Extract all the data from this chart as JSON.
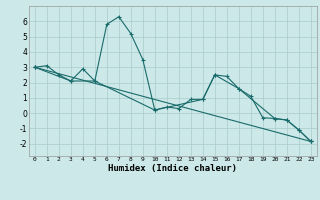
{
  "xlabel": "Humidex (Indice chaleur)",
  "bg_color": "#cce8e8",
  "grid_color": "#aacccc",
  "line_color": "#1a6b6b",
  "xlim": [
    -0.5,
    23.5
  ],
  "ylim": [
    -2.8,
    7.0
  ],
  "yticks": [
    -2,
    -1,
    0,
    1,
    2,
    3,
    4,
    5,
    6
  ],
  "xticks": [
    0,
    1,
    2,
    3,
    4,
    5,
    6,
    7,
    8,
    9,
    10,
    11,
    12,
    13,
    14,
    15,
    16,
    17,
    18,
    19,
    20,
    21,
    22,
    23
  ],
  "series1_x": [
    0,
    1,
    2,
    3,
    4,
    5,
    6,
    7,
    8,
    9,
    10,
    11,
    12,
    13,
    14,
    15,
    16,
    17,
    18,
    19,
    20,
    21,
    22,
    23
  ],
  "series1_y": [
    3.0,
    3.1,
    2.5,
    2.1,
    2.9,
    2.1,
    5.8,
    6.3,
    5.2,
    3.5,
    0.2,
    0.4,
    0.3,
    0.9,
    0.9,
    2.5,
    2.4,
    1.6,
    1.1,
    -0.3,
    -0.35,
    -0.45,
    -1.1,
    -1.85
  ],
  "series2_x": [
    0,
    3,
    5,
    10,
    14,
    15,
    17,
    20,
    21,
    22,
    23
  ],
  "series2_y": [
    3.0,
    2.1,
    2.1,
    0.2,
    0.9,
    2.5,
    1.6,
    -0.35,
    -0.45,
    -1.1,
    -1.85
  ],
  "series3_x": [
    0,
    23
  ],
  "series3_y": [
    3.0,
    -1.85
  ]
}
